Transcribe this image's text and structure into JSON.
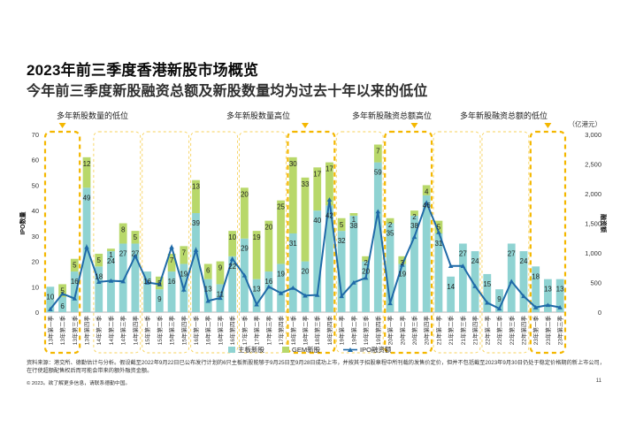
{
  "page": {
    "title": "2023年前三季度香港新股市场概览",
    "subtitle": "今年前三季度新股融资总额及新股数量均为过去十年以来的低位",
    "footer_note": "资料来源：港交所、德勤估计与分析。假设截至2022年9月22日已公布发行计划的6只主板新股能够于9月25日至9月28日成功上市，并按其于招股章程中所刊载的发售价定价，但并不包括截至2023年9月30日仍处于稳定价格期的新上市公司，在行使超额配售权后而可能会带来的额外融资金额。",
    "copyright": "© 2023。欲了解更多信息，请联系德勤中国。",
    "page_number": "11"
  },
  "chart_data": {
    "type": "bar+line",
    "categories": [
      "13年第一季",
      "13年第二季",
      "13年第三季",
      "13年第四季",
      "14年第一季",
      "14年第二季",
      "14年第三季",
      "14年第四季",
      "15年第一季",
      "15年第二季",
      "15年第三季",
      "15年第四季",
      "16年第一季",
      "16年第二季",
      "16年第三季",
      "16年第四季",
      "17年第一季",
      "17年第二季",
      "17年第三季",
      "17年第四季",
      "18年第一季",
      "18年第二季",
      "18年第三季",
      "18年第四季",
      "19年第一季",
      "19年第二季",
      "19年第三季",
      "19年第四季",
      "20年第一季",
      "20年第二季",
      "20年第三季",
      "20年第四季",
      "21年第一季",
      "21年第二季",
      "21年第三季",
      "21年第四季",
      "22年第一季",
      "22年第二季",
      "22年第三季",
      "22年第四季",
      "23年第一季",
      "23年第二季",
      "23年第三季"
    ],
    "series": [
      {
        "name": "主板新股",
        "axis": "left",
        "values": [
          10,
          6,
          16,
          49,
          18,
          24,
          27,
          27,
          16,
          9,
          16,
          19,
          39,
          13,
          11,
          22,
          29,
          13,
          16,
          19,
          31,
          20,
          40,
          42,
          32,
          38,
          20,
          59,
          35,
          19,
          38,
          46,
          31,
          14,
          27,
          24,
          15,
          9,
          27,
          24,
          18,
          13,
          13
        ]
      },
      {
        "name": "GEM新股",
        "axis": "left",
        "values": [
          0,
          5,
          5,
          12,
          5,
          1,
          8,
          5,
          0,
          5,
          7,
          7,
          13,
          6,
          9,
          10,
          20,
          19,
          20,
          25,
          30,
          33,
          17,
          17,
          5,
          1,
          2,
          7,
          2,
          3,
          2,
          4,
          5,
          0,
          0,
          0,
          0,
          0,
          0,
          0,
          0,
          0,
          0
        ]
      },
      {
        "name": "IPO融资额",
        "axis": "right",
        "values": [
          50,
          310,
          230,
          1100,
          510,
          530,
          520,
          950,
          500,
          470,
          1100,
          380,
          1050,
          190,
          240,
          900,
          620,
          130,
          430,
          320,
          410,
          280,
          290,
          1900,
          270,
          500,
          580,
          1700,
          150,
          800,
          1270,
          1850,
          1350,
          780,
          780,
          440,
          160,
          60,
          520,
          270,
          80,
          120,
          80
        ]
      }
    ],
    "label_values": [
      10,
      6,
      16,
      49,
      18,
      24,
      27,
      27,
      16,
      9,
      16,
      19,
      39,
      13,
      11,
      22,
      29,
      13,
      16,
      19,
      31,
      20,
      40,
      42,
      32,
      38,
      20,
      59,
      35,
      19,
      38,
      46,
      31,
      14,
      27,
      24,
      15,
      9,
      27,
      24,
      18,
      13,
      13
    ],
    "gem_labels": [
      null,
      5,
      5,
      12,
      5,
      1,
      8,
      5,
      null,
      5,
      7,
      7,
      13,
      6,
      9,
      10,
      20,
      19,
      20,
      25,
      30,
      33,
      17,
      17,
      5,
      1,
      2,
      7,
      2,
      3,
      2,
      4,
      5,
      null,
      null,
      null,
      null,
      null,
      null,
      null,
      null,
      null,
      null
    ],
    "ylabel_left": "IPO数量",
    "ylabel_right": "融资额",
    "unit_right": "（亿港元）",
    "ylim_left": [
      0,
      70
    ],
    "ylim_right": [
      0,
      3000
    ],
    "yticks_left": [
      "0",
      "10",
      "20",
      "30",
      "40",
      "50",
      "60",
      "70"
    ],
    "yticks_right": [
      "0",
      "500",
      "1,000",
      "1,500",
      "2,000",
      "2,500",
      "3,000"
    ],
    "legend": [
      "主板新股",
      "GEM新股",
      "IPO融资额"
    ],
    "legend_position": "bottom-center",
    "annotations": [
      {
        "text": "多年新股数量的低位",
        "target_quarters": [
          0,
          2
        ]
      },
      {
        "text": "多年新股数量高位",
        "target_quarters": [
          20,
          22
        ]
      },
      {
        "text": "多年新股融资总额高位",
        "target_quarters": [
          29,
          31
        ]
      },
      {
        "text": "多年新股融资总额的低位",
        "target_quarters": [
          40,
          42
        ]
      }
    ],
    "colors": {
      "main": "#8fd3d2",
      "gem": "#b8d86a",
      "line": "#1f6aa8",
      "highlight_box": "#f4b700",
      "group_box": "#f7d25a",
      "text": "#1a1a1a"
    }
  }
}
